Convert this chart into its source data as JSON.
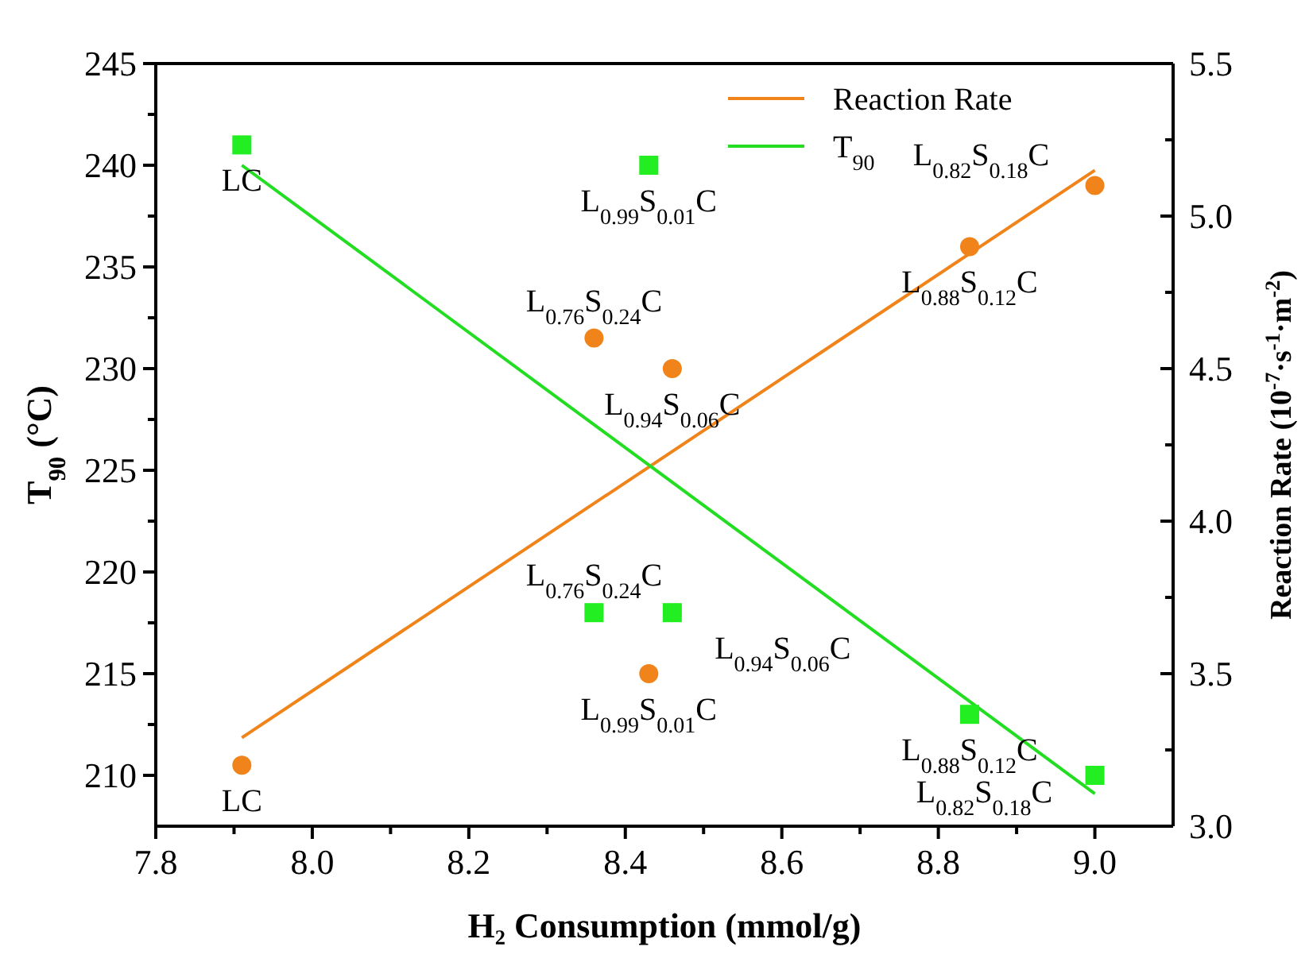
{
  "chart_data": {
    "type": "scatter",
    "xlabel": "H₂ Consumption (mmol/g)",
    "ylabel": "T$_{90}$ (°C)",
    "y2label": "Reaction Rate (10$^{-7}$·s$^{-1}$·m$^{-2}$)",
    "xlim": [
      7.8,
      9.1
    ],
    "xticks": [
      {
        "value": 7.8,
        "label": "7.8"
      },
      {
        "value": 7.9,
        "label": null
      },
      {
        "value": 8.0,
        "label": "8.0"
      },
      {
        "value": 8.1,
        "label": null
      },
      {
        "value": 8.2,
        "label": "8.2"
      },
      {
        "value": 8.3,
        "label": null
      },
      {
        "value": 8.4,
        "label": "8.4"
      },
      {
        "value": 8.5,
        "label": null
      },
      {
        "value": 8.6,
        "label": "8.6"
      },
      {
        "value": 8.7,
        "label": null
      },
      {
        "value": 8.8,
        "label": "8.8"
      },
      {
        "value": 8.9,
        "label": null
      },
      {
        "value": 9.0,
        "label": "9.0"
      }
    ],
    "ylim": [
      207.5,
      245
    ],
    "yticks": [
      {
        "value": 210,
        "label": "210"
      },
      {
        "value": 212.5,
        "label": null
      },
      {
        "value": 215,
        "label": "215"
      },
      {
        "value": 217.5,
        "label": null
      },
      {
        "value": 220,
        "label": "220"
      },
      {
        "value": 222.5,
        "label": null
      },
      {
        "value": 225,
        "label": "225"
      },
      {
        "value": 227.5,
        "label": null
      },
      {
        "value": 230,
        "label": "230"
      },
      {
        "value": 232.5,
        "label": null
      },
      {
        "value": 235,
        "label": "235"
      },
      {
        "value": 237.5,
        "label": null
      },
      {
        "value": 240,
        "label": "240"
      },
      {
        "value": 242.5,
        "label": null
      },
      {
        "value": 245,
        "label": "245"
      }
    ],
    "y2lim": [
      3.0,
      5.5
    ],
    "y2ticks": [
      {
        "value": 3.0,
        "label": "3.0"
      },
      {
        "value": 3.25,
        "label": null
      },
      {
        "value": 3.5,
        "label": "3.5"
      },
      {
        "value": 3.75,
        "label": null
      },
      {
        "value": 4.0,
        "label": "4.0"
      },
      {
        "value": 4.25,
        "label": null
      },
      {
        "value": 4.5,
        "label": "4.5"
      },
      {
        "value": 4.75,
        "label": null
      },
      {
        "value": 5.0,
        "label": "5.0"
      },
      {
        "value": 5.25,
        "label": null
      },
      {
        "value": 5.5,
        "label": "5.5"
      }
    ],
    "grid": false,
    "legend": "top right",
    "series": [
      {
        "name": "Reaction Rate",
        "type": "line",
        "axis": "y2",
        "color": "#f0841a",
        "line_style": "solid",
        "x": [
          7.91,
          9.0
        ],
        "values": [
          3.29,
          5.15
        ]
      },
      {
        "name": "T$_{90}$",
        "type": "line",
        "axis": "y",
        "color": "#22dd22",
        "line_style": "solid",
        "x": [
          7.91,
          9.0
        ],
        "values": [
          240,
          209.1
        ]
      },
      {
        "axis": "y2",
        "color": "#f0841a",
        "marker": "circle",
        "x": [
          7.91,
          8.36,
          8.46,
          8.43,
          8.84,
          9.0
        ],
        "values": [
          3.2,
          4.6,
          4.5,
          3.5,
          4.9,
          5.1
        ],
        "value_labels": [
          "LC",
          "L$_{0.76}$S$_{0.24}$C",
          "L$_{0.94}$S$_{0.06}$C",
          "L$_{0.99}$S$_{0.01}$C",
          "L$_{0.88}$S$_{0.12}$C",
          "L$_{0.82}$S$_{0.18}$C"
        ]
      },
      {
        "axis": "y",
        "color": "#22ee22",
        "marker": "square",
        "x": [
          7.91,
          8.43,
          8.36,
          8.46,
          8.84,
          9.0
        ],
        "values": [
          241,
          240,
          218,
          218,
          213,
          210
        ],
        "value_labels": [
          "LC",
          "L$_{0.99}$S$_{0.01}$C",
          "L$_{0.76}$S$_{0.24}$C",
          "L$_{0.94}$S$_{0.06}$C",
          "L$_{0.88}$S$_{0.12}$C",
          "L$_{0.82}$S$_{0.18}$C"
        ]
      }
    ]
  }
}
